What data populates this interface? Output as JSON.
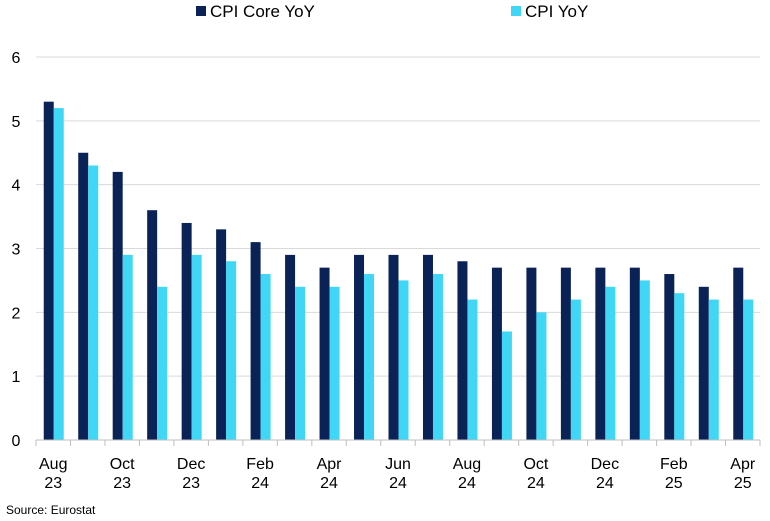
{
  "chart_data": {
    "type": "bar",
    "categories": [
      "Aug 23",
      "Sep 23",
      "Oct 23",
      "Nov 23",
      "Dec 23",
      "Jan 24",
      "Feb 24",
      "Mar 24",
      "Apr 24",
      "May 24",
      "Jun 24",
      "Jul 24",
      "Aug 24",
      "Sep 24",
      "Oct 24",
      "Nov 24",
      "Dec 24",
      "Jan 25",
      "Feb 25",
      "Mar 25",
      "Apr 25"
    ],
    "x_tick_labels": [
      {
        "index": 0,
        "line1": "Aug",
        "line2": "23"
      },
      {
        "index": 2,
        "line1": "Oct",
        "line2": "23"
      },
      {
        "index": 4,
        "line1": "Dec",
        "line2": "23"
      },
      {
        "index": 6,
        "line1": "Feb",
        "line2": "24"
      },
      {
        "index": 8,
        "line1": "Apr",
        "line2": "24"
      },
      {
        "index": 10,
        "line1": "Jun",
        "line2": "24"
      },
      {
        "index": 12,
        "line1": "Aug",
        "line2": "24"
      },
      {
        "index": 14,
        "line1": "Oct",
        "line2": "24"
      },
      {
        "index": 16,
        "line1": "Dec",
        "line2": "24"
      },
      {
        "index": 18,
        "line1": "Feb",
        "line2": "25"
      },
      {
        "index": 20,
        "line1": "Apr",
        "line2": "25"
      }
    ],
    "series": [
      {
        "name": "CPI Core YoY",
        "color": "#0b2256",
        "values": [
          5.3,
          4.5,
          4.2,
          3.6,
          3.4,
          3.3,
          3.1,
          2.9,
          2.7,
          2.9,
          2.9,
          2.9,
          2.8,
          2.7,
          2.7,
          2.7,
          2.7,
          2.7,
          2.6,
          2.4,
          2.7
        ]
      },
      {
        "name": "CPI YoY",
        "color": "#3fd7f5",
        "values": [
          5.2,
          4.3,
          2.9,
          2.4,
          2.9,
          2.8,
          2.6,
          2.4,
          2.4,
          2.6,
          2.5,
          2.6,
          2.2,
          1.7,
          2.0,
          2.2,
          2.4,
          2.5,
          2.3,
          2.2,
          2.2
        ]
      }
    ],
    "ylim": [
      0,
      6
    ],
    "yticks": [
      0,
      1,
      2,
      3,
      4,
      5,
      6
    ],
    "grid": true,
    "legend_position": "top"
  },
  "footer": {
    "source": "Source: Eurostat"
  }
}
